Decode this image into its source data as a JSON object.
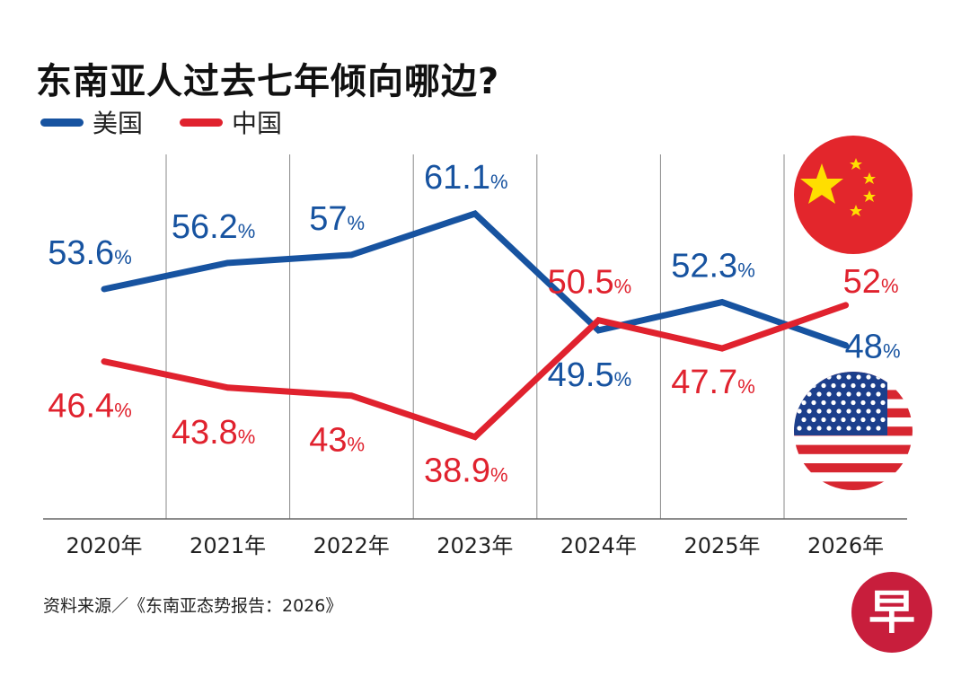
{
  "chart_data": {
    "type": "line",
    "title": "东南亚人过去七年倾向哪边?",
    "categories": [
      "2020年",
      "2021年",
      "2022年",
      "2023年",
      "2024年",
      "2025年",
      "2026年"
    ],
    "series": [
      {
        "name": "美国",
        "color": "#1753a0",
        "values": [
          53.6,
          56.2,
          57,
          61.1,
          49.5,
          52.3,
          48
        ]
      },
      {
        "name": "中国",
        "color": "#e0222e",
        "values": [
          46.4,
          43.8,
          43,
          38.9,
          50.5,
          47.7,
          52
        ]
      }
    ],
    "value_suffix": "%",
    "ylim": [
      35,
      65
    ],
    "grid": "vertical separators",
    "legend": "top-left",
    "source": "资料来源／《东南亚态势报告：2026》"
  },
  "icons": {
    "china_flag": "china-flag-icon",
    "us_flag": "us-flag-icon",
    "logo": "zaobao-logo",
    "logo_text": "早"
  }
}
